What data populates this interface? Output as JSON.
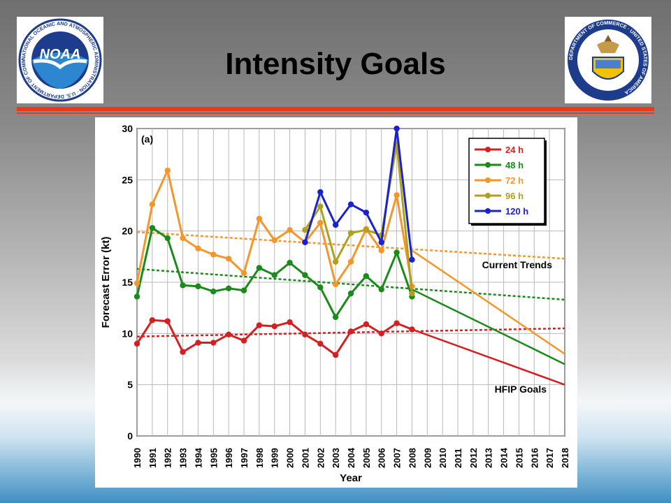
{
  "slide": {
    "title": "Intensity Goals",
    "accent_color": "#e8391a",
    "logos": [
      {
        "name": "NOAA",
        "text": "NOAA",
        "ring_text": "NATIONAL OCEANIC AND ATMOSPHERIC ADMINISTRATION · U.S. DEPARTMENT OF COMMERCE"
      },
      {
        "name": "Department of Commerce seal",
        "ring_text": "DEPARTMENT OF COMMERCE · UNITED STATES OF AMERICA"
      }
    ]
  },
  "chart_data": {
    "type": "line",
    "panel_label": "(a)",
    "xlabel": "Year",
    "ylabel": "Forecast Error (kt)",
    "categories": [
      1990,
      1991,
      1992,
      1993,
      1994,
      1995,
      1996,
      1997,
      1998,
      1999,
      2000,
      2001,
      2002,
      2003,
      2004,
      2005,
      2006,
      2007,
      2008,
      2009,
      2010,
      2011,
      2012,
      2013,
      2014,
      2015,
      2016,
      2017,
      2018
    ],
    "ylim": [
      0,
      30
    ],
    "yticks": [
      0,
      5,
      10,
      15,
      20,
      25,
      30
    ],
    "grid": true,
    "legend_position": "top-right",
    "series": [
      {
        "name": "24 h",
        "color": "#d42020",
        "x": [
          1990,
          1991,
          1992,
          1993,
          1994,
          1995,
          1996,
          1997,
          1998,
          1999,
          2000,
          2001,
          2002,
          2003,
          2004,
          2005,
          2006,
          2007,
          2008
        ],
        "values": [
          9.0,
          11.3,
          11.2,
          8.2,
          9.1,
          9.1,
          9.9,
          9.3,
          10.8,
          10.7,
          11.1,
          9.9,
          9.0,
          7.9,
          10.2,
          10.9,
          10.0,
          11.0,
          10.4
        ],
        "trend": {
          "x": [
            1990,
            2018
          ],
          "y": [
            9.7,
            10.5
          ]
        },
        "goal": {
          "x": [
            2008,
            2018
          ],
          "y": [
            10.4,
            5.0
          ]
        }
      },
      {
        "name": "48 h",
        "color": "#1a8a1a",
        "x": [
          1990,
          1991,
          1992,
          1993,
          1994,
          1995,
          1996,
          1997,
          1998,
          1999,
          2000,
          2001,
          2002,
          2003,
          2004,
          2005,
          2006,
          2007,
          2008
        ],
        "values": [
          13.6,
          20.3,
          19.3,
          14.7,
          14.6,
          14.1,
          14.4,
          14.2,
          16.4,
          15.7,
          16.9,
          15.7,
          14.5,
          11.6,
          13.9,
          15.6,
          14.3,
          17.9,
          13.6
        ],
        "trend": {
          "x": [
            1990,
            2018
          ],
          "y": [
            16.3,
            13.3
          ]
        },
        "goal": {
          "x": [
            2008,
            2018
          ],
          "y": [
            14.3,
            7.0
          ]
        }
      },
      {
        "name": "72 h",
        "color": "#f5962a",
        "x": [
          1990,
          1991,
          1992,
          1993,
          1994,
          1995,
          1996,
          1997,
          1998,
          1999,
          2000,
          2001,
          2002,
          2003,
          2004,
          2005,
          2006,
          2007,
          2008
        ],
        "values": [
          14.9,
          22.6,
          25.9,
          19.3,
          18.3,
          17.7,
          17.3,
          15.9,
          21.2,
          19.1,
          20.1,
          18.9,
          20.8,
          14.8,
          17.0,
          20.2,
          18.1,
          23.5,
          14.6
        ],
        "trend": {
          "x": [
            1990,
            2018
          ],
          "y": [
            19.9,
            17.3
          ]
        },
        "goal": {
          "x": [
            2008,
            2018
          ],
          "y": [
            18.1,
            8.0
          ]
        }
      },
      {
        "name": "96 h",
        "color": "#b0a020",
        "x": [
          2001,
          2002,
          2003,
          2004,
          2005,
          2006,
          2007,
          2008
        ],
        "values": [
          20.1,
          22.4,
          17.0,
          19.8,
          20.1,
          19.6,
          28.5,
          13.9
        ]
      },
      {
        "name": "120 h",
        "color": "#1a22cc",
        "x": [
          2001,
          2002,
          2003,
          2004,
          2005,
          2006,
          2007,
          2008
        ],
        "values": [
          18.9,
          23.8,
          20.6,
          22.6,
          21.8,
          18.9,
          30.0,
          17.2
        ]
      }
    ],
    "annotations": [
      "Current Trends",
      "HFIP Goals"
    ]
  }
}
